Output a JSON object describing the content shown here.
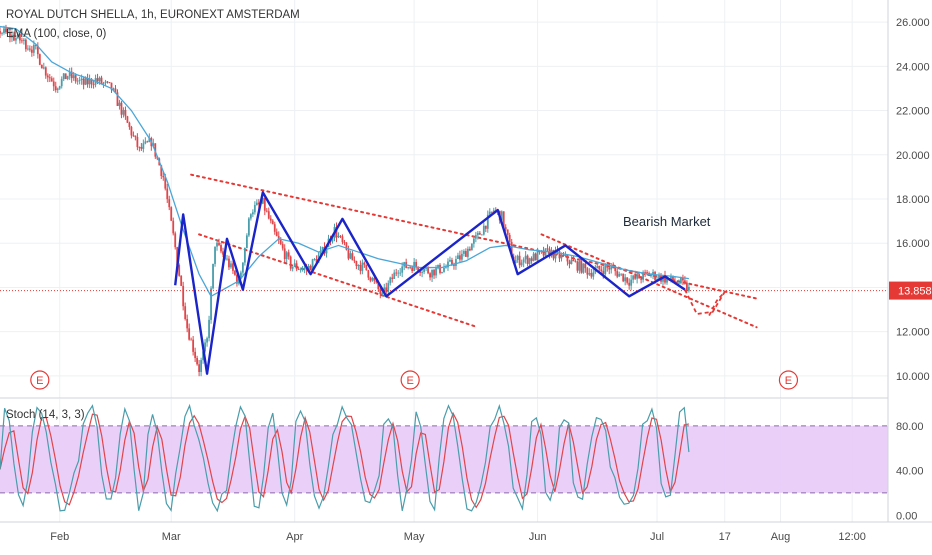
{
  "header": {
    "symbol_title": "ROYAL DUTCH SHELLA, 1h, EURONEXT AMSTERDAM",
    "ema_label": "EMA (100, close, 0)",
    "stoch_label": "Stoch (14, 3, 3)"
  },
  "annotations": {
    "bearish_label": "Bearish Market",
    "earnings_marker": "E",
    "current_price_badge": "13.858"
  },
  "colors": {
    "background": "#ffffff",
    "grid": "#eef0f3",
    "candle_up": "#4a9dab",
    "candle_down": "#e0454a",
    "ema": "#4aa6d8",
    "pattern": "#1a24c8",
    "channel": "#e53935",
    "price_line": "#e53935",
    "stoch_band": "#e6c8f8",
    "stoch_k": "#4a9dab",
    "stoch_d": "#e0454a"
  },
  "chart_data": [
    {
      "type": "line",
      "title": "ROYAL DUTCH SHELLA, 1h, EURONEXT AMSTERDAM",
      "y_ticks": [
        10,
        12,
        14,
        16,
        18,
        20,
        22,
        24,
        26
      ],
      "y_tick_labels": [
        "10.000",
        "12.000",
        "14.000",
        "16.000",
        "18.000",
        "20.000",
        "22.000",
        "24.000",
        "26.000"
      ],
      "ylim": [
        9,
        27
      ],
      "x_tick_labels": [
        "Feb",
        "Mar",
        "Apr",
        "May",
        "Jun",
        "Jul",
        "17",
        "Aug",
        "12:00"
      ],
      "x_ticks_days": [
        32,
        60,
        91,
        121,
        152,
        182,
        199,
        213,
        231
      ],
      "xlim_days": [
        17,
        240
      ],
      "current_price": 13.858,
      "earnings_days": [
        27,
        120,
        215
      ],
      "close_path": [
        {
          "day": 17,
          "price": 25.6
        },
        {
          "day": 22,
          "price": 25.2
        },
        {
          "day": 26,
          "price": 24.7
        },
        {
          "day": 28,
          "price": 23.9
        },
        {
          "day": 31,
          "price": 23.1
        },
        {
          "day": 34,
          "price": 23.6
        },
        {
          "day": 38,
          "price": 23.2
        },
        {
          "day": 41,
          "price": 23.4
        },
        {
          "day": 45,
          "price": 23.0
        },
        {
          "day": 48,
          "price": 21.8
        },
        {
          "day": 52,
          "price": 20.2
        },
        {
          "day": 55,
          "price": 20.6
        },
        {
          "day": 58,
          "price": 19.0
        },
        {
          "day": 61,
          "price": 15.8
        },
        {
          "day": 64,
          "price": 12.2
        },
        {
          "day": 67,
          "price": 10.3
        },
        {
          "day": 69,
          "price": 11.6
        },
        {
          "day": 71,
          "price": 16.0
        },
        {
          "day": 74,
          "price": 15.2
        },
        {
          "day": 77,
          "price": 14.2
        },
        {
          "day": 80,
          "price": 17.5
        },
        {
          "day": 83,
          "price": 17.8
        },
        {
          "day": 86,
          "price": 16.4
        },
        {
          "day": 90,
          "price": 15.0
        },
        {
          "day": 94,
          "price": 14.8
        },
        {
          "day": 98,
          "price": 15.6
        },
        {
          "day": 101,
          "price": 16.6
        },
        {
          "day": 105,
          "price": 15.3
        },
        {
          "day": 109,
          "price": 14.8
        },
        {
          "day": 113,
          "price": 13.6
        },
        {
          "day": 117,
          "price": 14.9
        },
        {
          "day": 121,
          "price": 15.0
        },
        {
          "day": 125,
          "price": 14.7
        },
        {
          "day": 129,
          "price": 14.9
        },
        {
          "day": 133,
          "price": 15.4
        },
        {
          "day": 137,
          "price": 16.3
        },
        {
          "day": 141,
          "price": 17.5
        },
        {
          "day": 143,
          "price": 17.2
        },
        {
          "day": 146,
          "price": 15.2
        },
        {
          "day": 150,
          "price": 15.3
        },
        {
          "day": 155,
          "price": 15.6
        },
        {
          "day": 160,
          "price": 15.2
        },
        {
          "day": 165,
          "price": 14.7
        },
        {
          "day": 170,
          "price": 14.9
        },
        {
          "day": 175,
          "price": 14.3
        },
        {
          "day": 180,
          "price": 14.6
        },
        {
          "day": 184,
          "price": 14.4
        },
        {
          "day": 188,
          "price": 14.2
        },
        {
          "day": 190,
          "price": 13.9
        }
      ],
      "ema_100": [
        {
          "day": 17,
          "price": 25.8
        },
        {
          "day": 21,
          "price": 25.7
        },
        {
          "day": 26,
          "price": 25.0
        },
        {
          "day": 30,
          "price": 24.2
        },
        {
          "day": 35,
          "price": 23.7
        },
        {
          "day": 40,
          "price": 23.4
        },
        {
          "day": 45,
          "price": 23.0
        },
        {
          "day": 50,
          "price": 22.0
        },
        {
          "day": 55,
          "price": 20.6
        },
        {
          "day": 59,
          "price": 18.8
        },
        {
          "day": 63,
          "price": 16.6
        },
        {
          "day": 67,
          "price": 14.6
        },
        {
          "day": 70,
          "price": 13.6
        },
        {
          "day": 73,
          "price": 13.9
        },
        {
          "day": 77,
          "price": 14.3
        },
        {
          "day": 82,
          "price": 15.4
        },
        {
          "day": 87,
          "price": 16.2
        },
        {
          "day": 92,
          "price": 16.0
        },
        {
          "day": 97,
          "price": 15.6
        },
        {
          "day": 102,
          "price": 15.9
        },
        {
          "day": 107,
          "price": 15.6
        },
        {
          "day": 112,
          "price": 15.3
        },
        {
          "day": 117,
          "price": 15.1
        },
        {
          "day": 122,
          "price": 14.9
        },
        {
          "day": 128,
          "price": 14.9
        },
        {
          "day": 134,
          "price": 15.2
        },
        {
          "day": 140,
          "price": 15.8
        },
        {
          "day": 144,
          "price": 15.9
        },
        {
          "day": 150,
          "price": 15.7
        },
        {
          "day": 156,
          "price": 15.6
        },
        {
          "day": 162,
          "price": 15.4
        },
        {
          "day": 168,
          "price": 15.1
        },
        {
          "day": 174,
          "price": 14.8
        },
        {
          "day": 180,
          "price": 14.6
        },
        {
          "day": 186,
          "price": 14.5
        },
        {
          "day": 190,
          "price": 14.4
        }
      ],
      "pattern_zigzag": [
        {
          "day": 61,
          "price": 14.1
        },
        {
          "day": 63,
          "price": 17.3
        },
        {
          "day": 69,
          "price": 10.1
        },
        {
          "day": 74,
          "price": 16.2
        },
        {
          "day": 78,
          "price": 13.9
        },
        {
          "day": 83,
          "price": 18.3
        },
        {
          "day": 95,
          "price": 14.6
        },
        {
          "day": 103,
          "price": 17.1
        },
        {
          "day": 114,
          "price": 13.6
        },
        {
          "day": 142,
          "price": 17.5
        },
        {
          "day": 147,
          "price": 14.6
        },
        {
          "day": 159,
          "price": 15.9
        },
        {
          "day": 175,
          "price": 13.6
        },
        {
          "day": 184,
          "price": 14.5
        },
        {
          "day": 189,
          "price": 13.9
        }
      ],
      "projection_dashed": [
        {
          "day": 189,
          "price": 13.9
        },
        {
          "day": 192,
          "price": 12.8
        },
        {
          "day": 196,
          "price": 12.9
        },
        {
          "day": 199,
          "price": 13.8
        },
        {
          "day": 197,
          "price": 13.4
        },
        {
          "day": 195,
          "price": 12.7
        }
      ],
      "channel_lines": [
        [
          {
            "day": 65,
            "price": 19.1
          },
          {
            "day": 207,
            "price": 13.5
          }
        ],
        [
          {
            "day": 67,
            "price": 16.4
          },
          {
            "day": 137,
            "price": 12.2
          }
        ],
        [
          {
            "day": 153,
            "price": 16.4
          },
          {
            "day": 207,
            "price": 12.2
          }
        ]
      ]
    },
    {
      "type": "line",
      "title": "Stoch (14, 3, 3)",
      "y_ticks": [
        0,
        40,
        80
      ],
      "y_tick_labels": [
        "0.00",
        "40.00",
        "80.00"
      ],
      "ylim": [
        -6,
        104
      ],
      "bands": [
        20,
        80
      ],
      "oscillator": "stochastic, oscillating between roughly 5 and 98"
    }
  ]
}
